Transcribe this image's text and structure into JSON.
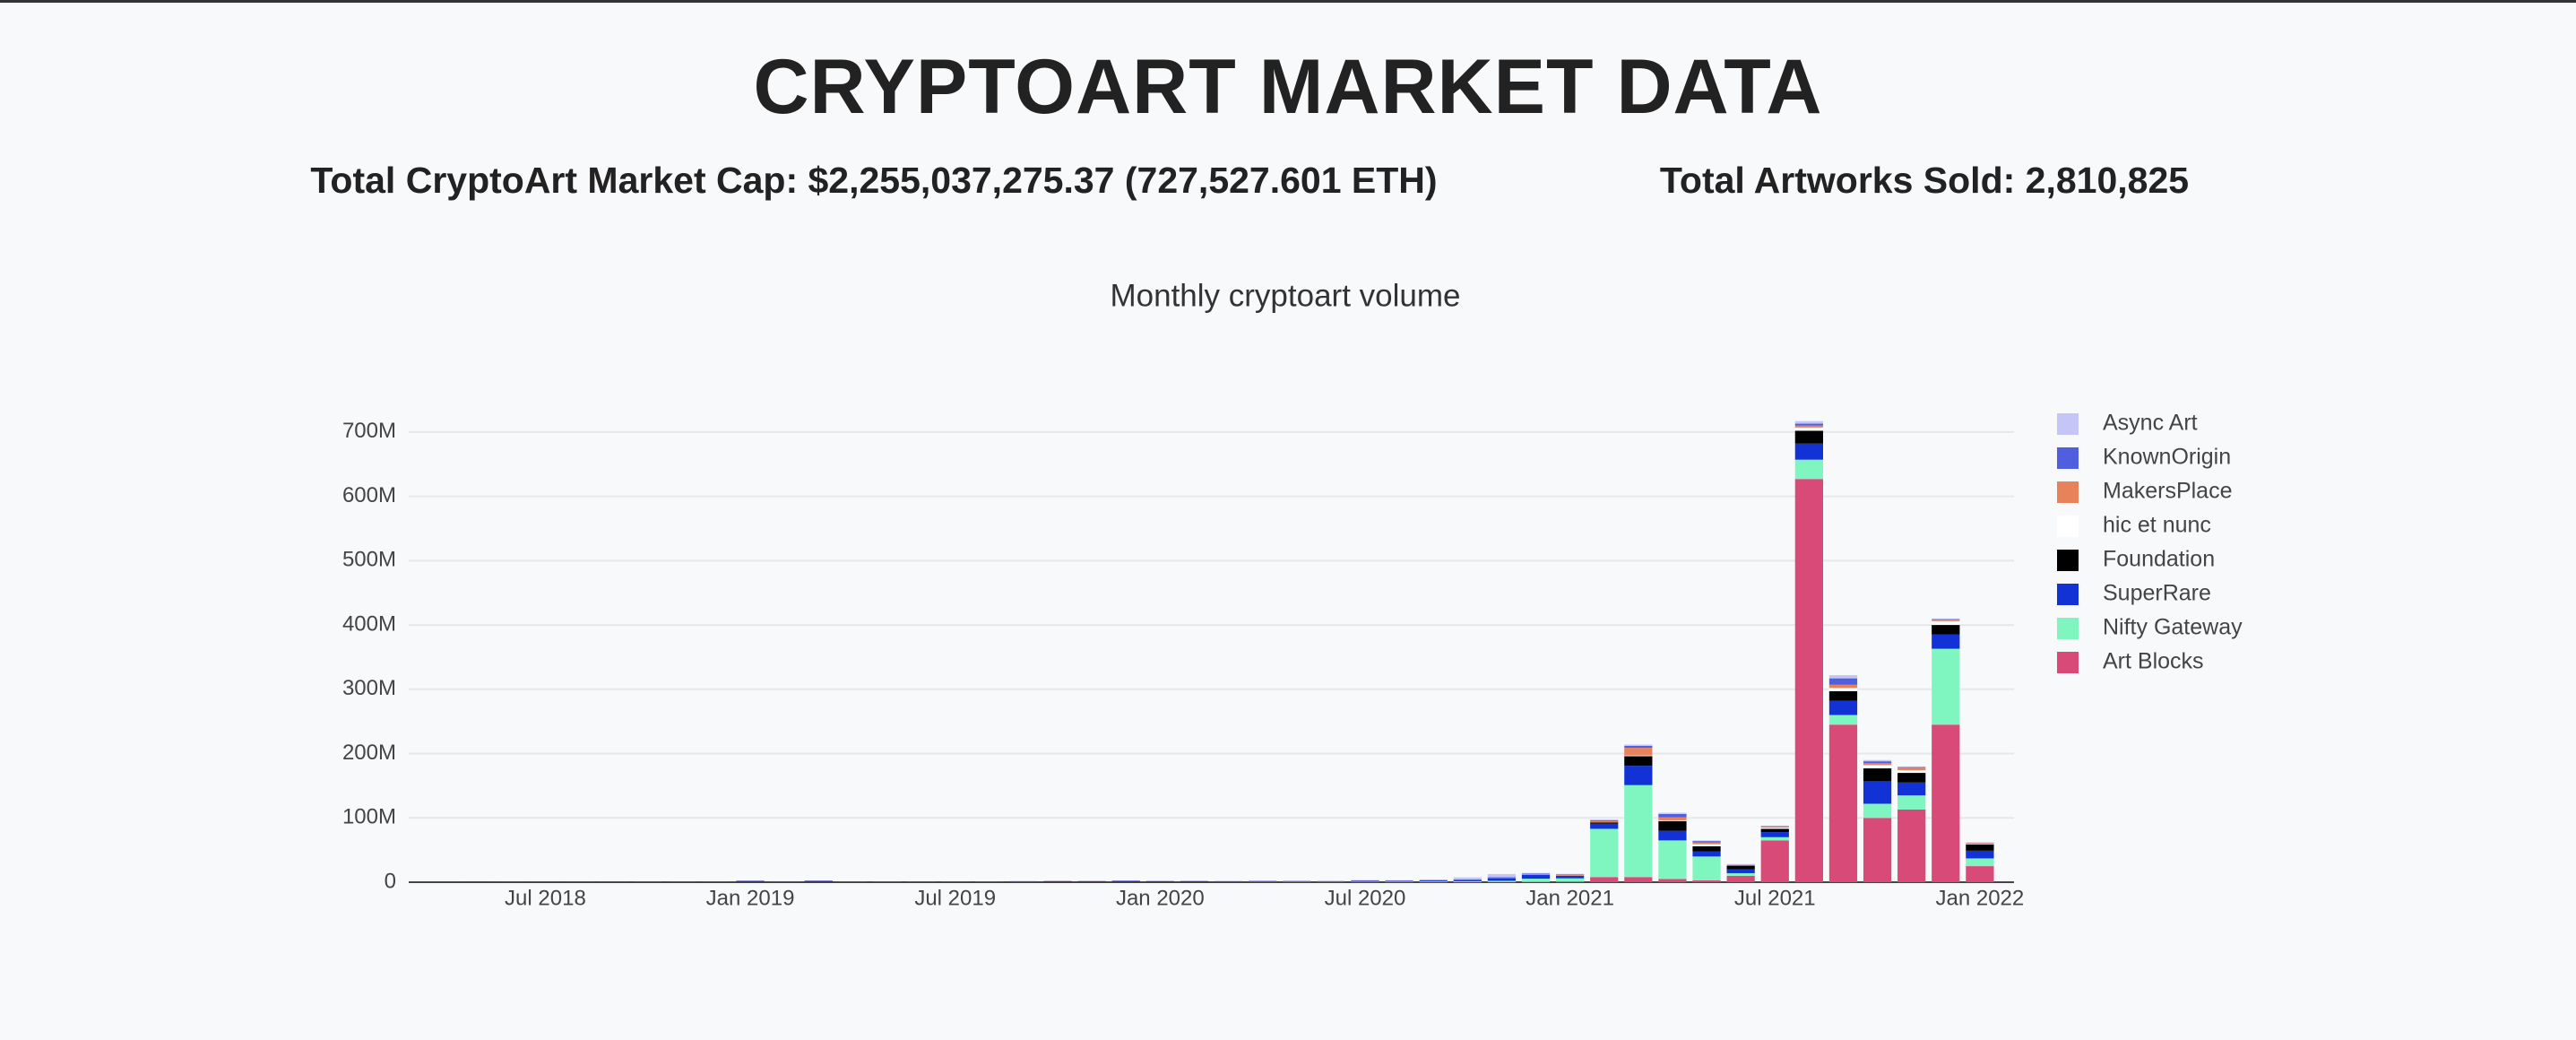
{
  "header": {
    "title": "CRYPTOART MARKET DATA",
    "market_cap": "Total CryptoArt Market Cap: $2,255,037,275.37 (727,527.601 ETH)",
    "artworks_sold": "Total Artworks Sold: 2,810,825"
  },
  "chart_data": {
    "type": "bar",
    "stacked": true,
    "title": "Monthly cryptoart volume",
    "x": [
      "2018-04",
      "2018-05",
      "2018-06",
      "2018-07",
      "2018-08",
      "2018-09",
      "2018-10",
      "2018-11",
      "2018-12",
      "2019-01",
      "2019-02",
      "2019-03",
      "2019-04",
      "2019-05",
      "2019-06",
      "2019-07",
      "2019-08",
      "2019-09",
      "2019-10",
      "2019-11",
      "2019-12",
      "2020-01",
      "2020-02",
      "2020-03",
      "2020-04",
      "2020-05",
      "2020-06",
      "2020-07",
      "2020-08",
      "2020-09",
      "2020-10",
      "2020-11",
      "2020-12",
      "2021-01",
      "2021-02",
      "2021-03",
      "2021-04",
      "2021-05",
      "2021-06",
      "2021-07",
      "2021-08",
      "2021-09",
      "2021-10",
      "2021-11",
      "2021-12",
      "2022-01"
    ],
    "xlim": [
      "2018-03",
      "2022-02"
    ],
    "xticks": [
      {
        "value": "2018-07",
        "label": "Jul 2018"
      },
      {
        "value": "2019-01",
        "label": "Jan 2019"
      },
      {
        "value": "2019-07",
        "label": "Jul 2019"
      },
      {
        "value": "2020-01",
        "label": "Jan 2020"
      },
      {
        "value": "2020-07",
        "label": "Jul 2020"
      },
      {
        "value": "2021-01",
        "label": "Jan 2021"
      },
      {
        "value": "2021-07",
        "label": "Jul 2021"
      },
      {
        "value": "2022-01",
        "label": "Jan 2022"
      }
    ],
    "ylim": [
      0,
      750000000
    ],
    "yticks": [
      0,
      {
        "value": 100000000,
        "label": "100M"
      },
      {
        "value": 200000000,
        "label": "200M"
      },
      {
        "value": 300000000,
        "label": "300M"
      },
      {
        "value": 400000000,
        "label": "400M"
      },
      {
        "value": 500000000,
        "label": "500M"
      },
      {
        "value": 600000000,
        "label": "600M"
      },
      {
        "value": 700000000,
        "label": "700M"
      }
    ],
    "grid": true,
    "legend": "right",
    "series": [
      {
        "name": "Art Blocks",
        "color": "#d84a77",
        "values": [
          0,
          0,
          0,
          0,
          0,
          0,
          0,
          0,
          0,
          0,
          0,
          0,
          0,
          0,
          0,
          0,
          0,
          0,
          0,
          0,
          0,
          0,
          0,
          0,
          0,
          0,
          0,
          0,
          0,
          0,
          0,
          200000,
          500000,
          1000000,
          8000000,
          8000000,
          5000000,
          3000000,
          10000000,
          65000000,
          627000000,
          245000000,
          100000000,
          113000000,
          245000000,
          25000000
        ]
      },
      {
        "name": "Nifty Gateway",
        "color": "#7ff5c0",
        "values": [
          0,
          0,
          0,
          0,
          0,
          0,
          0,
          0,
          0,
          0,
          0,
          0,
          0,
          0,
          0,
          0,
          0,
          0,
          0,
          0,
          0,
          0,
          0,
          300000,
          500000,
          600000,
          500000,
          800000,
          1000000,
          1200000,
          1500000,
          2000000,
          5000000,
          5000000,
          75000000,
          143000000,
          60000000,
          37000000,
          4000000,
          5000000,
          30000000,
          15000000,
          22000000,
          22000000,
          118000000,
          12000000
        ]
      },
      {
        "name": "SuperRare",
        "color": "#1232d6",
        "values": [
          100000,
          150000,
          200000,
          300000,
          300000,
          400000,
          500000,
          600000,
          800000,
          2000000,
          1000000,
          2000000,
          800000,
          700000,
          800000,
          600000,
          700000,
          1000000,
          1500000,
          1500000,
          2000000,
          1500000,
          1500000,
          1000000,
          1200000,
          1000000,
          800000,
          1500000,
          1000000,
          1500000,
          2000000,
          4000000,
          6000000,
          4000000,
          8000000,
          30000000,
          15000000,
          8000000,
          6000000,
          8000000,
          25000000,
          22000000,
          35000000,
          20000000,
          22000000,
          12000000
        ]
      },
      {
        "name": "Foundation",
        "color": "#000000",
        "values": [
          0,
          0,
          0,
          0,
          0,
          0,
          0,
          0,
          0,
          0,
          0,
          0,
          0,
          0,
          0,
          0,
          0,
          0,
          0,
          0,
          0,
          0,
          0,
          0,
          0,
          0,
          0,
          0,
          0,
          0,
          0,
          0,
          0,
          0,
          2000000,
          15000000,
          15000000,
          8000000,
          6000000,
          5000000,
          20000000,
          15000000,
          20000000,
          15000000,
          15000000,
          10000000
        ]
      },
      {
        "name": "hic et nunc",
        "color": "#ffffff",
        "values": [
          0,
          0,
          0,
          0,
          0,
          0,
          0,
          0,
          0,
          0,
          0,
          0,
          0,
          0,
          0,
          0,
          0,
          0,
          0,
          0,
          0,
          0,
          0,
          0,
          0,
          0,
          0,
          0,
          0,
          0,
          0,
          0,
          0,
          0,
          0,
          1000000,
          1000000,
          3000000,
          1000000,
          2000000,
          5000000,
          5000000,
          5000000,
          4000000,
          6000000,
          1000000
        ]
      },
      {
        "name": "MakersPlace",
        "color": "#e8825a",
        "values": [
          0,
          0,
          50000,
          100000,
          100000,
          100000,
          200000,
          200000,
          200000,
          300000,
          300000,
          400000,
          300000,
          300000,
          300000,
          200000,
          300000,
          300000,
          400000,
          300000,
          300000,
          300000,
          300000,
          200000,
          200000,
          300000,
          300000,
          300000,
          400000,
          500000,
          500000,
          800000,
          1000000,
          1000000,
          2000000,
          12000000,
          5000000,
          3000000,
          500000,
          1000000,
          3000000,
          5000000,
          3000000,
          4000000,
          2000000,
          1000000
        ]
      },
      {
        "name": "KnownOrigin",
        "color": "#4f5fe0",
        "values": [
          50000,
          50000,
          80000,
          100000,
          100000,
          100000,
          100000,
          150000,
          150000,
          200000,
          200000,
          300000,
          200000,
          200000,
          200000,
          200000,
          200000,
          300000,
          300000,
          300000,
          300000,
          300000,
          300000,
          300000,
          300000,
          300000,
          300000,
          400000,
          400000,
          500000,
          500000,
          700000,
          1000000,
          1000000,
          1500000,
          3000000,
          5000000,
          2000000,
          500000,
          1000000,
          3000000,
          10000000,
          3000000,
          1000000,
          1000000,
          500000
        ]
      },
      {
        "name": "Async Art",
        "color": "#c5c6f7",
        "values": [
          0,
          0,
          0,
          0,
          0,
          0,
          0,
          0,
          0,
          0,
          0,
          0,
          0,
          0,
          0,
          0,
          0,
          0,
          0,
          0,
          0,
          100000,
          300000,
          300000,
          400000,
          300000,
          300000,
          300000,
          400000,
          500000,
          3000000,
          5000000,
          1000000,
          1000000,
          1000000,
          2000000,
          2000000,
          1000000,
          0,
          1000000,
          4000000,
          5000000,
          2000000,
          1000000,
          1000000,
          500000
        ]
      }
    ]
  }
}
